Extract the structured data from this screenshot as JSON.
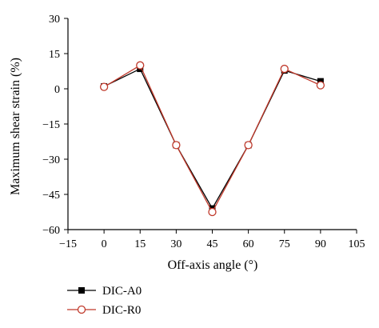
{
  "chart_data": {
    "type": "line",
    "xlabel": "Off-axis angle (°)",
    "ylabel": "Maximum shear strain (%)",
    "xlim": [
      -15,
      105
    ],
    "ylim": [
      -60,
      30
    ],
    "x_ticks": [
      -15,
      0,
      15,
      30,
      45,
      60,
      75,
      90,
      105
    ],
    "y_ticks": [
      30,
      15,
      0,
      -15,
      -30,
      -45,
      -60
    ],
    "x_tick_labels": [
      "−15",
      "0",
      "15",
      "30",
      "45",
      "60",
      "75",
      "90",
      "105"
    ],
    "y_tick_labels": [
      "30",
      "15",
      "0",
      "−15",
      "−30",
      "−45",
      "−60"
    ],
    "grid": false,
    "legend_position": "bottom-left",
    "x": [
      0,
      15,
      30,
      45,
      60,
      75,
      90
    ],
    "series": [
      {
        "name": "DIC-A0",
        "values": [
          1.0,
          8.5,
          -24.0,
          -51.0,
          -24.0,
          7.8,
          3.2
        ],
        "color": "#000000",
        "marker": "filled-square"
      },
      {
        "name": "DIC-R0",
        "values": [
          0.8,
          10.0,
          -24.0,
          -52.5,
          -24.0,
          8.5,
          1.5
        ],
        "color": "#c0392b",
        "marker": "open-circle"
      }
    ]
  }
}
